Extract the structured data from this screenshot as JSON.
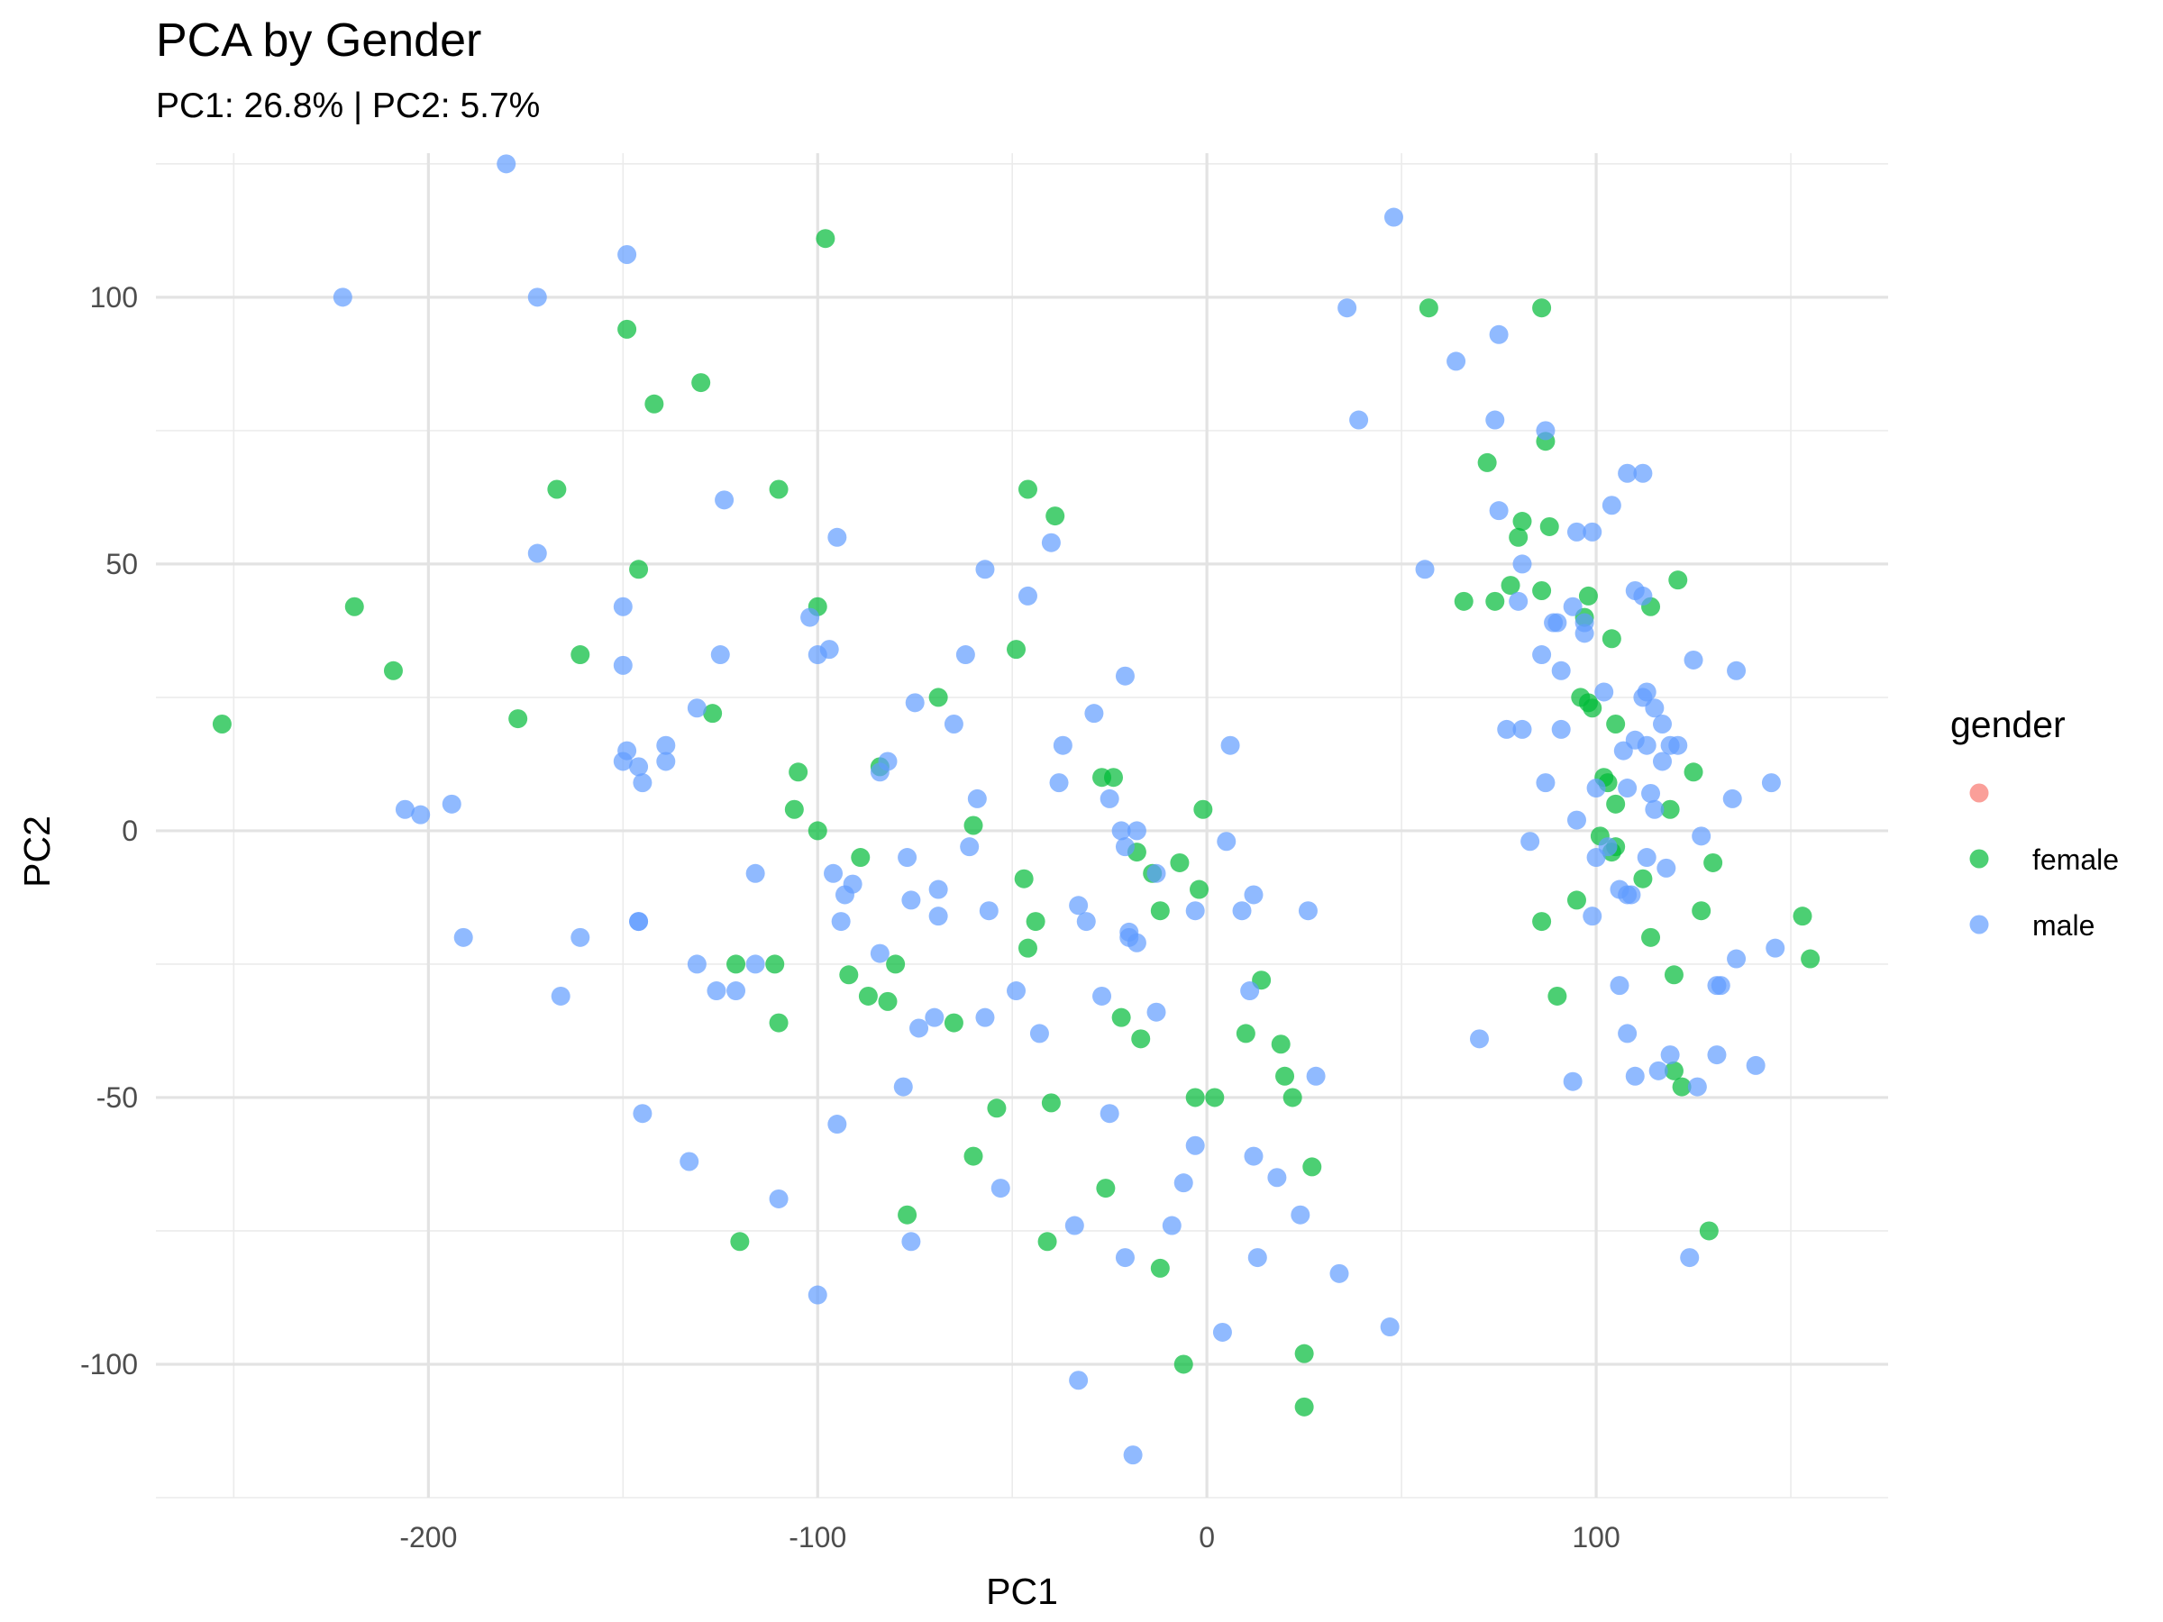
{
  "chart_data": {
    "type": "scatter",
    "title": "PCA by Gender",
    "subtitle": "PC1: 26.8% | PC2: 5.7%",
    "xlabel": "PC1",
    "ylabel": "PC2",
    "xlim": [
      -270,
      175
    ],
    "ylim": [
      -125,
      127
    ],
    "x_ticks": [
      -200,
      -100,
      0,
      100
    ],
    "x_tick_labels": [
      "-200",
      "-100",
      "0",
      "100"
    ],
    "y_ticks": [
      -100,
      -50,
      0,
      50,
      100
    ],
    "y_tick_labels": [
      "-100",
      "-50",
      "0",
      "50",
      "100"
    ],
    "grid": true,
    "legend": {
      "title": "gender",
      "placement": "right",
      "entries": [
        {
          "label": "",
          "color": "#F8766D"
        },
        {
          "label": "female",
          "color": "#00BA38"
        },
        {
          "label": "male",
          "color": "#619CFF"
        }
      ]
    },
    "series": [
      {
        "name": "female",
        "color": "#00BA38",
        "points": [
          [
            -253,
            20
          ],
          [
            -219,
            42
          ],
          [
            -209,
            30
          ],
          [
            -177,
            21
          ],
          [
            -167,
            64
          ],
          [
            -161,
            33
          ],
          [
            -149,
            94
          ],
          [
            -146,
            49
          ],
          [
            -142,
            80
          ],
          [
            -130,
            84
          ],
          [
            -127,
            22
          ],
          [
            -121,
            -25
          ],
          [
            -120,
            -77
          ],
          [
            -111,
            -25
          ],
          [
            -110,
            -36
          ],
          [
            -110,
            64
          ],
          [
            -106,
            4
          ],
          [
            -105,
            11
          ],
          [
            -100,
            0
          ],
          [
            -100,
            42
          ],
          [
            -98,
            111
          ],
          [
            -92,
            -27
          ],
          [
            -89,
            -5
          ],
          [
            -87,
            -31
          ],
          [
            -84,
            12
          ],
          [
            -82,
            -32
          ],
          [
            -80,
            -25
          ],
          [
            -77,
            -72
          ],
          [
            -69,
            25
          ],
          [
            -65,
            -36
          ],
          [
            -60,
            1
          ],
          [
            -60,
            -61
          ],
          [
            -54,
            -52
          ],
          [
            -49,
            34
          ],
          [
            -47,
            -9
          ],
          [
            -46,
            -22
          ],
          [
            -46,
            64
          ],
          [
            -44,
            -17
          ],
          [
            -41,
            -77
          ],
          [
            -40,
            -51
          ],
          [
            -39,
            59
          ],
          [
            -27,
            10
          ],
          [
            -26,
            -67
          ],
          [
            -24,
            10
          ],
          [
            -22,
            -35
          ],
          [
            -18,
            -4
          ],
          [
            -17,
            -39
          ],
          [
            -14,
            -8
          ],
          [
            -12,
            -15
          ],
          [
            -12,
            -82
          ],
          [
            -7,
            -6
          ],
          [
            -6,
            -100
          ],
          [
            -3,
            -50
          ],
          [
            -2,
            -11
          ],
          [
            -1,
            4
          ],
          [
            2,
            -50
          ],
          [
            10,
            -38
          ],
          [
            14,
            -28
          ],
          [
            19,
            -40
          ],
          [
            20,
            -46
          ],
          [
            22,
            -50
          ],
          [
            25,
            -98
          ],
          [
            25,
            -108
          ],
          [
            27,
            -63
          ],
          [
            57,
            98
          ],
          [
            66,
            43
          ],
          [
            72,
            69
          ],
          [
            74,
            43
          ],
          [
            78,
            46
          ],
          [
            80,
            55
          ],
          [
            81,
            58
          ],
          [
            86,
            45
          ],
          [
            86,
            -17
          ],
          [
            86,
            98
          ],
          [
            87,
            73
          ],
          [
            88,
            57
          ],
          [
            90,
            -31
          ],
          [
            95,
            -13
          ],
          [
            96,
            25
          ],
          [
            97,
            40
          ],
          [
            98,
            24
          ],
          [
            98,
            44
          ],
          [
            99,
            23
          ],
          [
            101,
            -1
          ],
          [
            102,
            10
          ],
          [
            103,
            9
          ],
          [
            104,
            -4
          ],
          [
            104,
            36
          ],
          [
            105,
            5
          ],
          [
            105,
            20
          ],
          [
            105,
            -3
          ],
          [
            112,
            -9
          ],
          [
            114,
            -20
          ],
          [
            114,
            42
          ],
          [
            119,
            4
          ],
          [
            120,
            -27
          ],
          [
            120,
            -45
          ],
          [
            121,
            47
          ],
          [
            122,
            -48
          ],
          [
            125,
            11
          ],
          [
            127,
            -15
          ],
          [
            129,
            -75
          ],
          [
            130,
            -6
          ],
          [
            153,
            -16
          ],
          [
            155,
            -24
          ]
        ]
      },
      {
        "name": "male",
        "color": "#619CFF",
        "points": [
          [
            -222,
            100
          ],
          [
            -206,
            4
          ],
          [
            -202,
            3
          ],
          [
            -194,
            5
          ],
          [
            -191,
            -20
          ],
          [
            -180,
            125
          ],
          [
            -172,
            100
          ],
          [
            -172,
            52
          ],
          [
            -166,
            -31
          ],
          [
            -161,
            -20
          ],
          [
            -150,
            13
          ],
          [
            -150,
            31
          ],
          [
            -150,
            42
          ],
          [
            -149,
            108
          ],
          [
            -149,
            15
          ],
          [
            -146,
            12
          ],
          [
            -146,
            -17
          ],
          [
            -146,
            -17
          ],
          [
            -145,
            -53
          ],
          [
            -145,
            9
          ],
          [
            -139,
            16
          ],
          [
            -139,
            13
          ],
          [
            -133,
            -62
          ],
          [
            -131,
            23
          ],
          [
            -131,
            -25
          ],
          [
            -126,
            -30
          ],
          [
            -125,
            33
          ],
          [
            -124,
            62
          ],
          [
            -121,
            -30
          ],
          [
            -116,
            -25
          ],
          [
            -116,
            -8
          ],
          [
            -110,
            -69
          ],
          [
            -102,
            40
          ],
          [
            -100,
            33
          ],
          [
            -100,
            -87
          ],
          [
            -97,
            34
          ],
          [
            -96,
            -8
          ],
          [
            -95,
            55
          ],
          [
            -95,
            -55
          ],
          [
            -94,
            -17
          ],
          [
            -93,
            -12
          ],
          [
            -91,
            -10
          ],
          [
            -84,
            11
          ],
          [
            -84,
            -23
          ],
          [
            -82,
            13
          ],
          [
            -78,
            -48
          ],
          [
            -77,
            -5
          ],
          [
            -76,
            -13
          ],
          [
            -76,
            -77
          ],
          [
            -75,
            24
          ],
          [
            -74,
            -37
          ],
          [
            -70,
            -35
          ],
          [
            -69,
            -16
          ],
          [
            -69,
            -11
          ],
          [
            -65,
            20
          ],
          [
            -62,
            33
          ],
          [
            -61,
            -3
          ],
          [
            -59,
            6
          ],
          [
            -57,
            49
          ],
          [
            -57,
            -35
          ],
          [
            -56,
            -15
          ],
          [
            -53,
            -67
          ],
          [
            -49,
            -30
          ],
          [
            -46,
            44
          ],
          [
            -43,
            -38
          ],
          [
            -40,
            54
          ],
          [
            -38,
            9
          ],
          [
            -37,
            16
          ],
          [
            -34,
            -74
          ],
          [
            -33,
            -103
          ],
          [
            -33,
            -14
          ],
          [
            -31,
            -17
          ],
          [
            -29,
            22
          ],
          [
            -27,
            -31
          ],
          [
            -25,
            6
          ],
          [
            -25,
            -53
          ],
          [
            -22,
            0
          ],
          [
            -21,
            29
          ],
          [
            -21,
            -80
          ],
          [
            -21,
            -3
          ],
          [
            -20,
            -19
          ],
          [
            -20,
            -20
          ],
          [
            -19,
            -117
          ],
          [
            -18,
            0
          ],
          [
            -18,
            -21
          ],
          [
            -13,
            -8
          ],
          [
            -13,
            -34
          ],
          [
            -9,
            -74
          ],
          [
            -6,
            -66
          ],
          [
            -3,
            -59
          ],
          [
            -3,
            -15
          ],
          [
            4,
            -94
          ],
          [
            5,
            -2
          ],
          [
            6,
            16
          ],
          [
            9,
            -15
          ],
          [
            11,
            -30
          ],
          [
            12,
            -12
          ],
          [
            12,
            -61
          ],
          [
            13,
            -80
          ],
          [
            18,
            -65
          ],
          [
            24,
            -72
          ],
          [
            26,
            -15
          ],
          [
            28,
            -46
          ],
          [
            34,
            -83
          ],
          [
            36,
            98
          ],
          [
            39,
            77
          ],
          [
            47,
            -93
          ],
          [
            48,
            115
          ],
          [
            56,
            49
          ],
          [
            64,
            88
          ],
          [
            70,
            -39
          ],
          [
            74,
            77
          ],
          [
            75,
            60
          ],
          [
            75,
            93
          ],
          [
            77,
            19
          ],
          [
            80,
            43
          ],
          [
            81,
            19
          ],
          [
            81,
            50
          ],
          [
            83,
            -2
          ],
          [
            86,
            33
          ],
          [
            87,
            9
          ],
          [
            87,
            75
          ],
          [
            89,
            39
          ],
          [
            90,
            39
          ],
          [
            91,
            19
          ],
          [
            91,
            30
          ],
          [
            94,
            42
          ],
          [
            94,
            -47
          ],
          [
            95,
            2
          ],
          [
            95,
            56
          ],
          [
            97,
            37
          ],
          [
            97,
            39
          ],
          [
            99,
            56
          ],
          [
            100,
            -5
          ],
          [
            100,
            8
          ],
          [
            99,
            -16
          ],
          [
            102,
            26
          ],
          [
            103,
            -3
          ],
          [
            104,
            61
          ],
          [
            106,
            -29
          ],
          [
            106,
            -11
          ],
          [
            107,
            15
          ],
          [
            108,
            -12
          ],
          [
            108,
            67
          ],
          [
            108,
            8
          ],
          [
            108,
            -38
          ],
          [
            109,
            -12
          ],
          [
            110,
            -46
          ],
          [
            110,
            17
          ],
          [
            110,
            45
          ],
          [
            112,
            44
          ],
          [
            112,
            67
          ],
          [
            112,
            25
          ],
          [
            113,
            -5
          ],
          [
            113,
            26
          ],
          [
            113,
            16
          ],
          [
            114,
            7
          ],
          [
            115,
            23
          ],
          [
            115,
            4
          ],
          [
            116,
            -45
          ],
          [
            117,
            20
          ],
          [
            117,
            13
          ],
          [
            118,
            -7
          ],
          [
            119,
            -42
          ],
          [
            119,
            16
          ],
          [
            121,
            16
          ],
          [
            124,
            -80
          ],
          [
            125,
            32
          ],
          [
            126,
            -48
          ],
          [
            127,
            -1
          ],
          [
            131,
            -29
          ],
          [
            131,
            -42
          ],
          [
            132,
            -29
          ],
          [
            135,
            6
          ],
          [
            136,
            -24
          ],
          [
            136,
            30
          ],
          [
            141,
            -44
          ],
          [
            145,
            9
          ],
          [
            146,
            -22
          ]
        ]
      }
    ]
  }
}
